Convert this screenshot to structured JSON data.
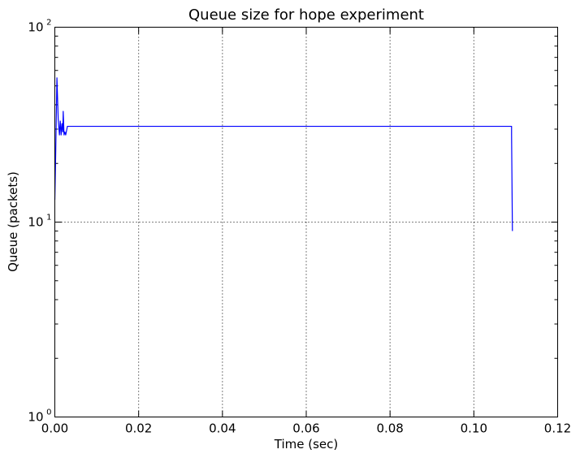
{
  "chart_data": {
    "type": "line",
    "title": "Queue size for hope experiment",
    "xlabel": "Time (sec)",
    "ylabel": "Queue (packets)",
    "xlim": [
      0.0,
      0.12
    ],
    "ylim": [
      1,
      100
    ],
    "yscale": "log",
    "grid": true,
    "legend": "none",
    "x_ticks": [
      "0.00",
      "0.02",
      "0.04",
      "0.06",
      "0.08",
      "0.10",
      "0.12"
    ],
    "y_ticks": [
      {
        "base": "10",
        "exp": "0"
      },
      {
        "base": "10",
        "exp": "1"
      },
      {
        "base": "10",
        "exp": "2"
      }
    ],
    "series": [
      {
        "color": "#0000ff",
        "x": [
          0.0,
          0.0002,
          0.0005,
          0.0008,
          0.0011,
          0.0013,
          0.0015,
          0.0017,
          0.0019,
          0.002,
          0.0022,
          0.0024,
          0.0026,
          0.003,
          0.109,
          0.109,
          0.1092
        ],
        "y": [
          13,
          22,
          55,
          34,
          28,
          33,
          28,
          32,
          29,
          37,
          28,
          29,
          28,
          31,
          31,
          28,
          9
        ]
      }
    ]
  }
}
